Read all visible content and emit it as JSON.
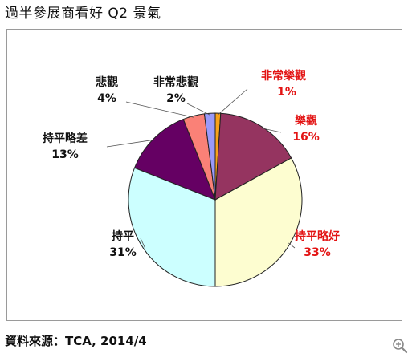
{
  "title": "過半參展商看好 Q2 景氣",
  "source": "資料來源：TCA, 2014/4",
  "zoom_icon": "zoom-in-icon",
  "chart_data": {
    "type": "pie",
    "title": "",
    "slices": [
      {
        "label": "非常樂觀",
        "value": 1,
        "pct": "1%",
        "color": "#f7a21b",
        "label_color": "#e31414"
      },
      {
        "label": "樂觀",
        "value": 16,
        "pct": "16%",
        "color": "#953460",
        "label_color": "#e31414"
      },
      {
        "label": "持平略好",
        "value": 33,
        "pct": "33%",
        "color": "#fdfdd0",
        "label_color": "#e31414"
      },
      {
        "label": "持平",
        "value": 31,
        "pct": "31%",
        "color": "#ccffff",
        "label_color": "#111111"
      },
      {
        "label": "持平略差",
        "value": 13,
        "pct": "13%",
        "color": "#650063",
        "label_color": "#111111"
      },
      {
        "label": "悲觀",
        "value": 4,
        "pct": "4%",
        "color": "#fa8177",
        "label_color": "#111111"
      },
      {
        "label": "非常悲觀",
        "value": 2,
        "pct": "2%",
        "color": "#9a9afa",
        "label_color": "#111111"
      }
    ],
    "start_angle_deg": 0,
    "direction": "clockwise",
    "legend": "none"
  }
}
